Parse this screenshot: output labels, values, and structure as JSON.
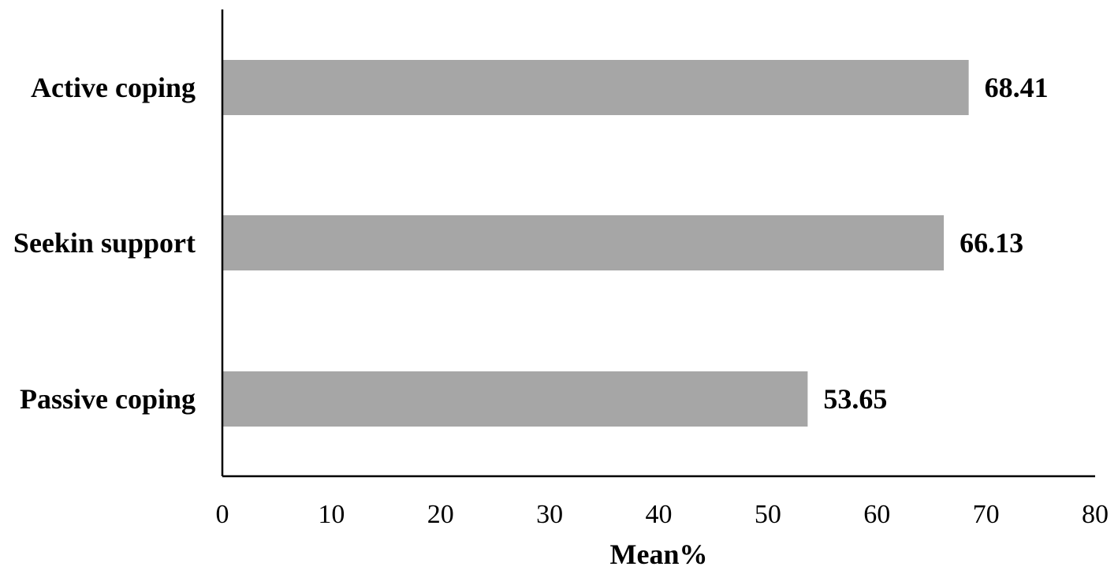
{
  "chart_data": {
    "type": "bar",
    "orientation": "horizontal",
    "categories": [
      "Active coping",
      "Seekin support",
      "Passive coping"
    ],
    "values": [
      68.41,
      66.13,
      53.65
    ],
    "value_labels": [
      "68.41",
      "66.13",
      "53.65"
    ],
    "xlabel": "Mean%",
    "ylabel": "",
    "xlim": [
      0,
      80
    ],
    "xticks": [
      "0",
      "10",
      "20",
      "30",
      "40",
      "50",
      "60",
      "70",
      "80"
    ],
    "grid": false,
    "bar_color": "#a6a6a6",
    "axis_color": "#000000"
  }
}
